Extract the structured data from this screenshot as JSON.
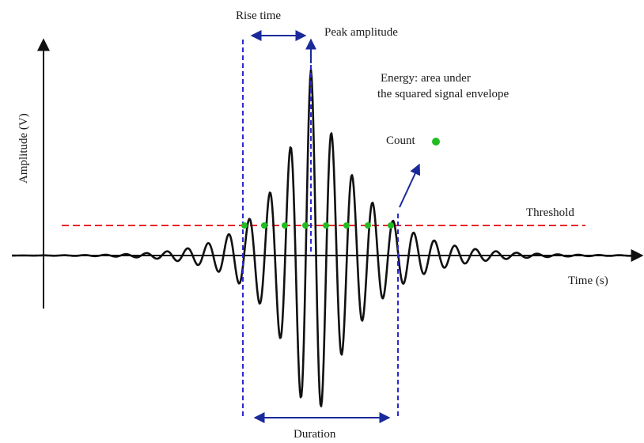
{
  "labels": {
    "rise_time": "Rise time",
    "peak_amplitude": "Peak amplitude",
    "energy_line1": "Energy: area under",
    "energy_line2": "the squared signal envelope",
    "count": "Count",
    "threshold": "Threshold",
    "time_axis": "Time (s)",
    "amplitude_axis": "Amplitude (V)",
    "duration": "Duration"
  },
  "colors": {
    "signal": "#111111",
    "threshold_line": "#e8262a",
    "marker_lines": "#2a2ad0",
    "arrows": "#1b2a9a",
    "count_dots": "#22bb22",
    "axis": "#111111"
  }
}
